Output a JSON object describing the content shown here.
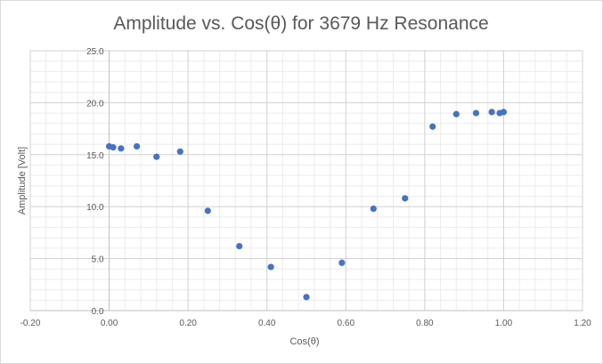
{
  "chart_data": {
    "type": "scatter",
    "title": "Amplitude vs. Cos(θ) for 3679 Hz Resonance",
    "xlabel": "Cos(θ)",
    "ylabel": "Amplitude [Volt]",
    "xlim": [
      -0.2,
      1.2
    ],
    "ylim": [
      0,
      25
    ],
    "x_ticks": [
      "-0.20",
      "0.00",
      "0.20",
      "0.40",
      "0.60",
      "0.80",
      "1.00",
      "1.20"
    ],
    "y_ticks": [
      "0.0",
      "5.0",
      "10.0",
      "15.0",
      "20.0",
      "25.0"
    ],
    "grid": "major and minor",
    "legend": "none",
    "marker_color": "#4472c4",
    "points": [
      {
        "x": 0.0,
        "y": 15.8
      },
      {
        "x": 0.01,
        "y": 15.7
      },
      {
        "x": 0.03,
        "y": 15.6
      },
      {
        "x": 0.07,
        "y": 15.8
      },
      {
        "x": 0.12,
        "y": 14.8
      },
      {
        "x": 0.18,
        "y": 15.3
      },
      {
        "x": 0.25,
        "y": 9.6
      },
      {
        "x": 0.33,
        "y": 6.2
      },
      {
        "x": 0.41,
        "y": 4.2
      },
      {
        "x": 0.5,
        "y": 1.3
      },
      {
        "x": 0.59,
        "y": 4.6
      },
      {
        "x": 0.67,
        "y": 9.8
      },
      {
        "x": 0.75,
        "y": 10.8
      },
      {
        "x": 0.82,
        "y": 17.7
      },
      {
        "x": 0.88,
        "y": 18.9
      },
      {
        "x": 0.93,
        "y": 19.0
      },
      {
        "x": 0.97,
        "y": 19.1
      },
      {
        "x": 0.99,
        "y": 19.0
      },
      {
        "x": 1.0,
        "y": 19.1
      }
    ]
  }
}
